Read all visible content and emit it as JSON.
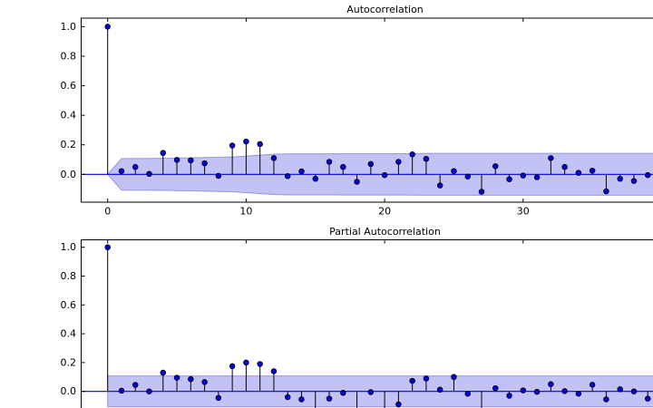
{
  "figure": {
    "background": "#ffffff",
    "colors": {
      "axis": "#000000",
      "tick_label": "#000000",
      "title_text": "#000000",
      "stem": "#000000",
      "marker_fill": "#0000f0",
      "marker_edge": "#000000",
      "zero_line": "#0000e0",
      "band_fill": "#4040dd",
      "band_edge": "#7070cc"
    }
  },
  "chart_data": [
    {
      "type": "stem",
      "title": "Autocorrelation",
      "xlabel": "",
      "ylabel": "",
      "grid": false,
      "legend": "none",
      "xlim": [
        -2,
        42
      ],
      "ylim": [
        -0.19,
        1.06
      ],
      "x_tick_labels": [
        "0",
        "10",
        "20",
        "30"
      ],
      "x_tick_values": [
        0,
        10,
        20,
        30
      ],
      "y_tick_labels": [
        "1.0",
        "0.8",
        "0.6",
        "0.4",
        "0.2",
        "0.0"
      ],
      "y_tick_values": [
        1.0,
        0.8,
        0.6,
        0.4,
        0.2,
        0.0
      ],
      "lags_start": 0,
      "values": [
        1.0,
        0.022,
        0.05,
        0.003,
        0.145,
        0.098,
        0.095,
        0.075,
        -0.01,
        0.195,
        0.222,
        0.205,
        0.11,
        -0.012,
        0.02,
        -0.03,
        0.085,
        0.05,
        -0.05,
        0.07,
        -0.005,
        0.085,
        0.135,
        0.105,
        -0.075,
        0.022,
        -0.015,
        -0.118,
        0.055,
        -0.033,
        -0.008,
        -0.02,
        0.11,
        0.05,
        0.01,
        0.025,
        -0.115,
        -0.03,
        -0.045,
        -0.005
      ],
      "conf_band": {
        "shape": "tapered",
        "halfwidths": [
          0,
          0.107,
          0.108,
          0.108,
          0.109,
          0.11,
          0.112,
          0.114,
          0.116,
          0.118,
          0.124,
          0.131,
          0.136,
          0.139,
          0.139,
          0.139,
          0.139,
          0.14,
          0.14,
          0.14,
          0.14,
          0.14,
          0.141,
          0.142,
          0.142,
          0.142,
          0.142,
          0.142,
          0.142,
          0.142,
          0.142,
          0.142,
          0.142,
          0.142,
          0.142,
          0.142,
          0.142,
          0.142,
          0.142,
          0.142,
          0.142
        ]
      }
    },
    {
      "type": "stem",
      "title": "Partial Autocorrelation",
      "xlabel": "",
      "ylabel": "",
      "grid": false,
      "legend": "none",
      "xlim": [
        -2,
        42
      ],
      "ylim": [
        -0.19,
        1.06
      ],
      "x_tick_labels": [],
      "x_tick_values": [
        0,
        10,
        20,
        30
      ],
      "y_tick_labels": [
        "1.0",
        "0.8",
        "0.6",
        "0.4",
        "0.2",
        "0.0"
      ],
      "y_tick_values": [
        1.0,
        0.8,
        0.6,
        0.4,
        0.2,
        0.0
      ],
      "lags_start": 0,
      "values": [
        1.0,
        0.005,
        0.045,
        0.0,
        0.13,
        0.095,
        0.085,
        0.065,
        -0.045,
        0.175,
        0.2,
        0.19,
        0.14,
        -0.04,
        -0.055,
        -0.16,
        -0.05,
        -0.01,
        -0.15,
        -0.005,
        -0.16,
        -0.09,
        0.073,
        0.09,
        0.012,
        0.1,
        -0.016,
        -0.17,
        0.022,
        -0.03,
        0.007,
        -0.003,
        0.05,
        0.002,
        -0.016,
        0.046,
        -0.055,
        0.015,
        0.0,
        -0.05
      ],
      "conf_band": {
        "shape": "constant",
        "halfwidth": 0.107
      }
    }
  ]
}
